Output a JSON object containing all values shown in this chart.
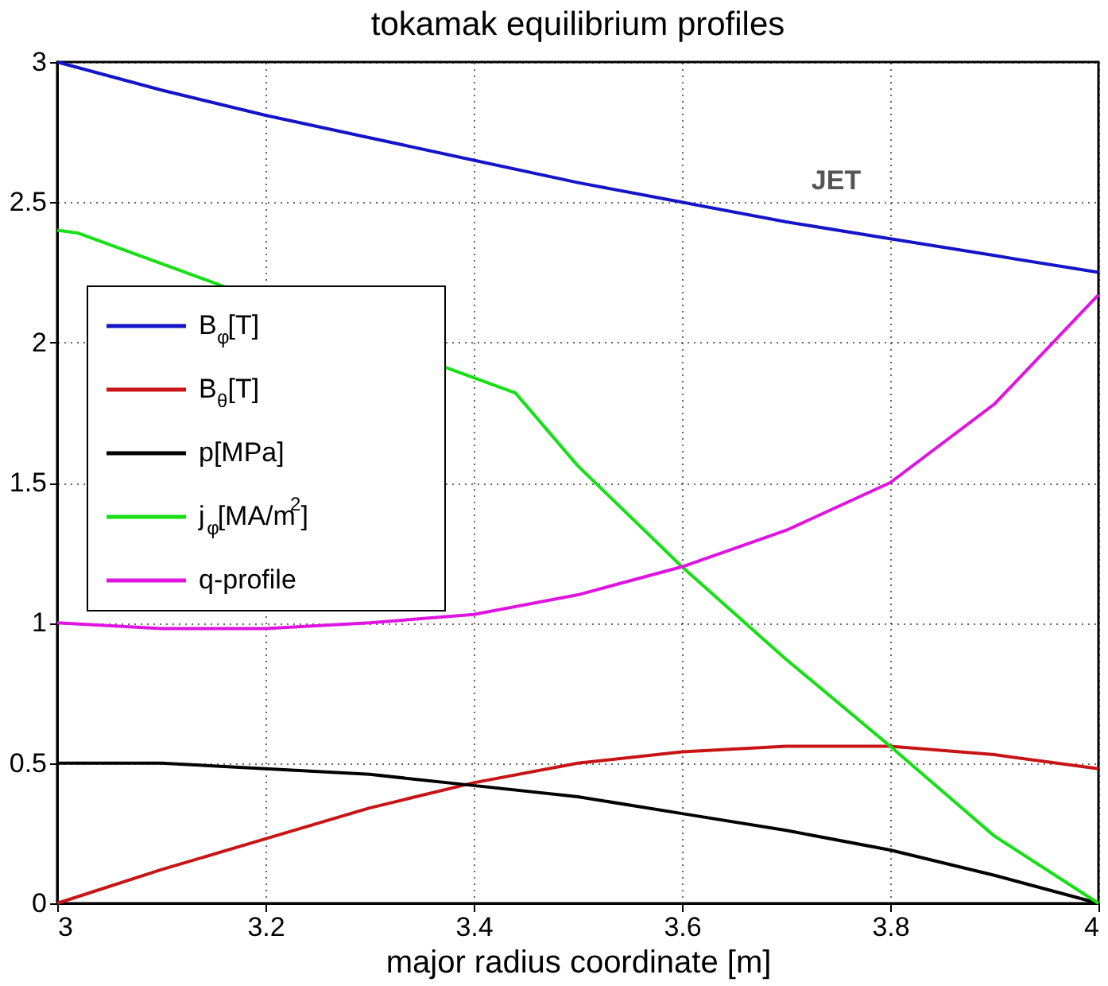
{
  "chart_data": {
    "type": "line",
    "title": "tokamak equilibrium profiles",
    "xlabel": "major radius coordinate [m]",
    "x": [
      3.0,
      3.1,
      3.2,
      3.3,
      3.4,
      3.5,
      3.6,
      3.7,
      3.8,
      3.9,
      4.0
    ],
    "series": [
      {
        "name": "B$_{φ}$[T]",
        "color": "#1414c8",
        "values": [
          3.0,
          2.9,
          2.81,
          2.73,
          2.65,
          2.57,
          2.5,
          2.43,
          2.37,
          2.31,
          2.25
        ]
      },
      {
        "name": "B$_{θ}$[T]",
        "color": "#c81414",
        "values": [
          0.0,
          0.12,
          0.23,
          0.34,
          0.43,
          0.5,
          0.54,
          0.56,
          0.56,
          0.53,
          0.48
        ]
      },
      {
        "name": "p[MPa]",
        "color": "#000000",
        "values": [
          0.5,
          0.5,
          0.48,
          0.46,
          0.42,
          0.38,
          0.32,
          0.26,
          0.19,
          0.1,
          0.0
        ]
      },
      {
        "name": "j$_{φ}$[MA/m$^{2}$]",
        "color": "#14e014",
        "x": [
          3.0,
          3.02,
          3.44,
          3.5,
          3.6,
          3.7,
          3.8,
          3.9,
          4.0
        ],
        "values": [
          2.4,
          2.39,
          1.82,
          1.56,
          1.2,
          0.87,
          0.56,
          0.24,
          0.0
        ]
      },
      {
        "name": "q-profile",
        "color": "#e014e0",
        "values": [
          1.0,
          0.98,
          0.98,
          1.0,
          1.03,
          1.1,
          1.2,
          1.33,
          1.5,
          1.78,
          2.17
        ]
      }
    ],
    "xlim": [
      3.0,
      4.0
    ],
    "xticks": [
      3,
      3.2,
      3.4,
      3.6,
      3.8,
      4
    ],
    "ylim": [
      0,
      3
    ],
    "yticks": [
      0,
      0.5,
      1,
      1.5,
      2,
      2.5,
      3
    ],
    "annotations": [
      "JET"
    ],
    "grid": true,
    "legend": "left"
  }
}
